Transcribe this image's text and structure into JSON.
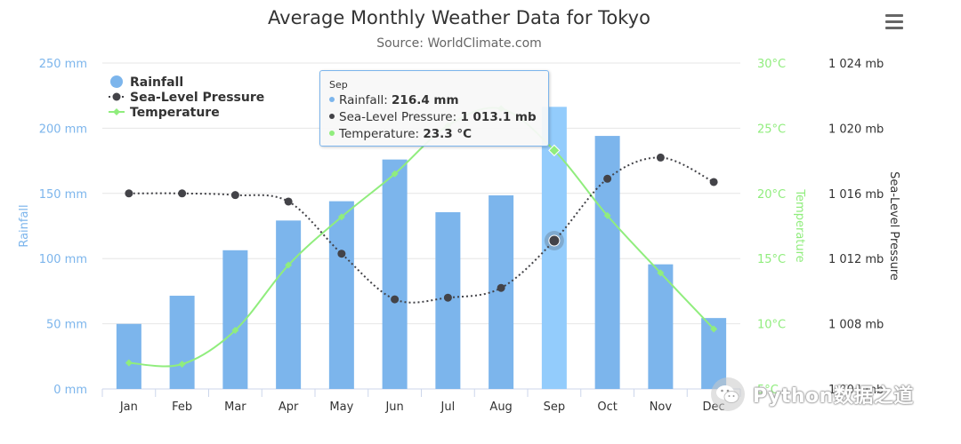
{
  "chart_data": {
    "type": "combo",
    "title": "Average Monthly Weather Data for Tokyo",
    "subtitle": "Source: WorldClimate.com",
    "categories": [
      "Jan",
      "Feb",
      "Mar",
      "Apr",
      "May",
      "Jun",
      "Jul",
      "Aug",
      "Sep",
      "Oct",
      "Nov",
      "Dec"
    ],
    "series": [
      {
        "name": "Rainfall",
        "type": "column",
        "axis": "rainfall",
        "color": "#7cb5ec",
        "values": [
          49.9,
          71.5,
          106.4,
          129.2,
          144.0,
          176.0,
          135.6,
          148.5,
          216.4,
          194.1,
          95.6,
          54.4
        ]
      },
      {
        "name": "Sea-Level Pressure",
        "type": "spline",
        "dash": "dotted",
        "axis": "pressure",
        "color": "#434348",
        "values": [
          1016,
          1016,
          1015.9,
          1015.5,
          1012.3,
          1009.5,
          1009.6,
          1010.2,
          1013.1,
          1016.9,
          1018.2,
          1016.7
        ]
      },
      {
        "name": "Temperature",
        "type": "spline",
        "axis": "temperature",
        "color": "#90ed7d",
        "values": [
          7.0,
          6.9,
          9.5,
          14.5,
          18.2,
          21.5,
          25.2,
          26.5,
          23.3,
          18.3,
          13.9,
          9.6
        ]
      }
    ],
    "y_axes": [
      {
        "id": "rainfall",
        "title": "Rainfall",
        "min": 0,
        "max": 250,
        "ticks": [
          0,
          50,
          100,
          150,
          200,
          250
        ],
        "unit": " mm",
        "side": "left",
        "color": "#7cb5ec"
      },
      {
        "id": "temperature",
        "title": "Temperature",
        "min": 5,
        "max": 30,
        "ticks": [
          5,
          10,
          15,
          20,
          25,
          30
        ],
        "unit": "°C",
        "side": "right",
        "color": "#90ed7d"
      },
      {
        "id": "pressure",
        "title": "Sea-Level Pressure",
        "min": 1004,
        "max": 1024,
        "ticks": [
          1004,
          1008,
          1012,
          1016,
          1020,
          1024
        ],
        "unit": " mb",
        "side": "right",
        "color": "#434348"
      }
    ],
    "legend_position": "top-left",
    "grid": true,
    "highlighted_category": "Sep"
  },
  "tooltip": {
    "header": "Sep",
    "rows": [
      {
        "label": "Rainfall: ",
        "value": "216.4 mm",
        "color": "#7cb5ec"
      },
      {
        "label": "Sea-Level Pressure: ",
        "value": "1 013.1 mb",
        "color": "#434348"
      },
      {
        "label": "Temperature: ",
        "value": "23.3 °C",
        "color": "#90ed7d"
      }
    ]
  },
  "watermark": {
    "text": "Python数据之道"
  },
  "icons": {
    "menu": "hamburger-menu-icon",
    "watermark_logo": "wechat-icon"
  }
}
